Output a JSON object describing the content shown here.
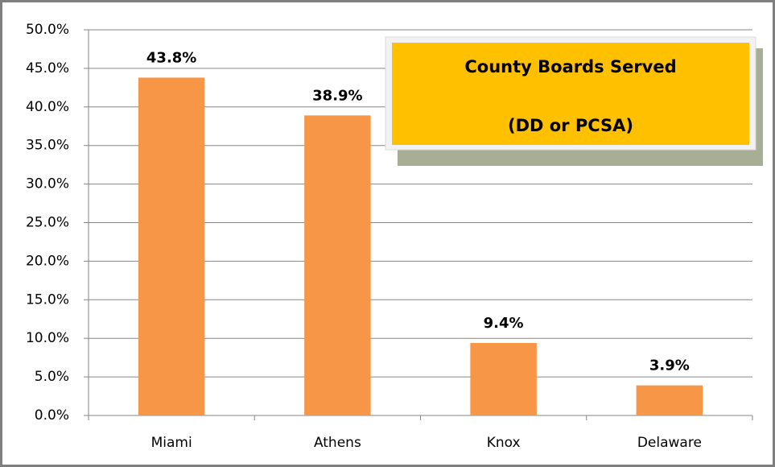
{
  "chart_data": {
    "type": "bar",
    "title": "County Boards Served",
    "subtitle": "(DD or PCSA)",
    "categories": [
      "Miami",
      "Athens",
      "Knox",
      "Delaware"
    ],
    "values": [
      43.8,
      38.9,
      9.4,
      3.9
    ],
    "value_labels": [
      "43.8%",
      "38.9%",
      "9.4%",
      "3.9%"
    ],
    "color": "#f79646",
    "ylim": [
      0,
      50
    ],
    "yticks": [
      {
        "value": 0,
        "label": "0.0%"
      },
      {
        "value": 5,
        "label": "5.0%"
      },
      {
        "value": 10,
        "label": "10.0%"
      },
      {
        "value": 15,
        "label": "15.0%"
      },
      {
        "value": 20,
        "label": "20.0%"
      },
      {
        "value": 25,
        "label": "25.0%"
      },
      {
        "value": 30,
        "label": "30.0%"
      },
      {
        "value": 35,
        "label": "35.0%"
      },
      {
        "value": 40,
        "label": "40.0%"
      },
      {
        "value": 45,
        "label": "45.0%"
      },
      {
        "value": 50,
        "label": "50.0%"
      }
    ],
    "grid": true
  }
}
